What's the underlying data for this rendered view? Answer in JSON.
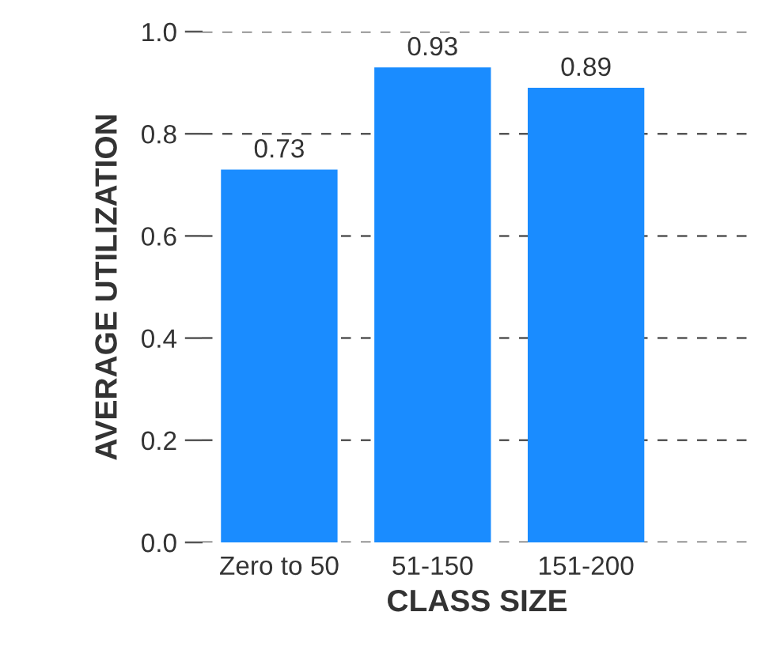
{
  "chart_data": {
    "type": "bar",
    "xlabel": "CLASS SIZE",
    "ylabel": "AVERAGE UTILIZATION",
    "categories": [
      "Zero to 50",
      "51-150",
      "151-200"
    ],
    "values": [
      0.73,
      0.93,
      0.89
    ],
    "color": "#1a8cff",
    "ylim": [
      0,
      1.0
    ],
    "yticks": [
      {
        "value": 0,
        "label": "0.0"
      },
      0.2,
      0.4,
      0.6,
      0.8,
      {
        "value": 1.0,
        "label": "1.0"
      }
    ],
    "grid": "y",
    "data_labels": true
  }
}
